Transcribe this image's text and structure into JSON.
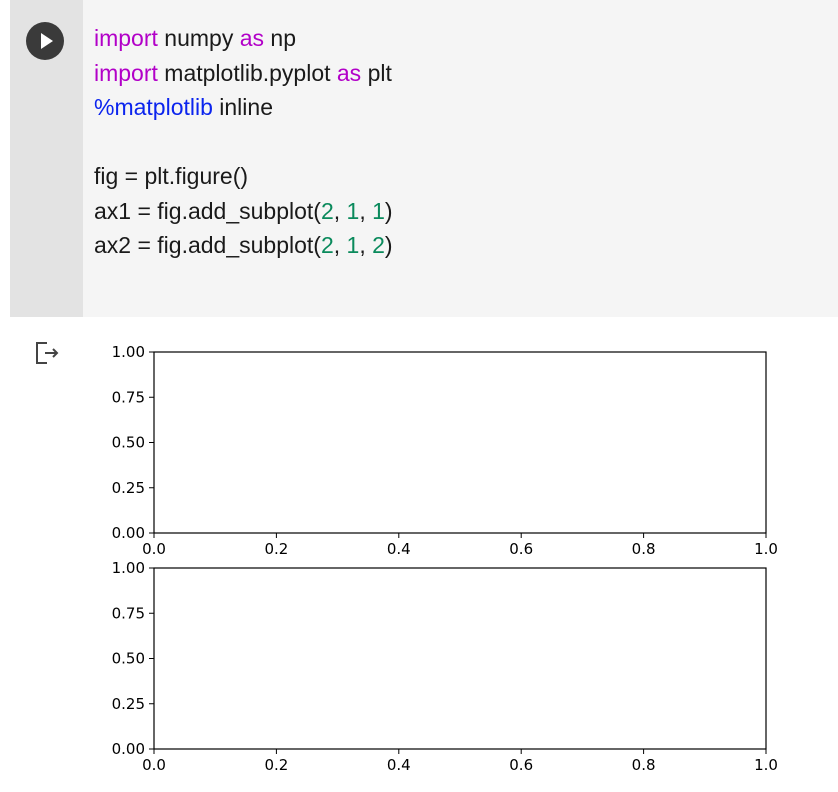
{
  "cell": {
    "run_button": "play-icon",
    "code_lines": [
      [
        {
          "t": "import",
          "c": "kw"
        },
        {
          "t": " numpy ",
          "c": ""
        },
        {
          "t": "as",
          "c": "kw"
        },
        {
          "t": " np",
          "c": ""
        }
      ],
      [
        {
          "t": "import",
          "c": "kw"
        },
        {
          "t": " matplotlib.pyplot ",
          "c": ""
        },
        {
          "t": "as",
          "c": "kw"
        },
        {
          "t": " plt",
          "c": ""
        }
      ],
      [
        {
          "t": "%matplotlib",
          "c": "magic"
        },
        {
          "t": " inline",
          "c": ""
        }
      ],
      [],
      [
        {
          "t": "fig = plt.figure()",
          "c": ""
        }
      ],
      [
        {
          "t": "ax1 = fig.add_subplot(",
          "c": ""
        },
        {
          "t": "2",
          "c": "num"
        },
        {
          "t": ", ",
          "c": ""
        },
        {
          "t": "1",
          "c": "num"
        },
        {
          "t": ", ",
          "c": ""
        },
        {
          "t": "1",
          "c": "num"
        },
        {
          "t": ")",
          "c": ""
        }
      ],
      [
        {
          "t": "ax2 = fig.add_subplot(",
          "c": ""
        },
        {
          "t": "2",
          "c": "num"
        },
        {
          "t": ", ",
          "c": ""
        },
        {
          "t": "1",
          "c": "num"
        },
        {
          "t": ", ",
          "c": ""
        },
        {
          "t": "2",
          "c": "num"
        },
        {
          "t": ")",
          "c": ""
        }
      ]
    ]
  },
  "output": {
    "icon": "output-arrow-icon"
  },
  "chart_data": [
    {
      "type": "line",
      "x": [],
      "series": [],
      "xlim": [
        0.0,
        1.0
      ],
      "ylim": [
        0.0,
        1.0
      ],
      "xticks": [
        "0.0",
        "0.2",
        "0.4",
        "0.6",
        "0.8",
        "1.0"
      ],
      "yticks": [
        "0.00",
        "0.25",
        "0.50",
        "0.75",
        "1.00"
      ],
      "grid": false
    },
    {
      "type": "line",
      "x": [],
      "series": [],
      "xlim": [
        0.0,
        1.0
      ],
      "ylim": [
        0.0,
        1.0
      ],
      "xticks": [
        "0.0",
        "0.2",
        "0.4",
        "0.6",
        "0.8",
        "1.0"
      ],
      "yticks": [
        "0.00",
        "0.25",
        "0.50",
        "0.75",
        "1.00"
      ],
      "grid": false
    }
  ],
  "colors": {
    "keyword": "#b200c8",
    "magic": "#0b24ee",
    "number": "#0a8a5c"
  }
}
